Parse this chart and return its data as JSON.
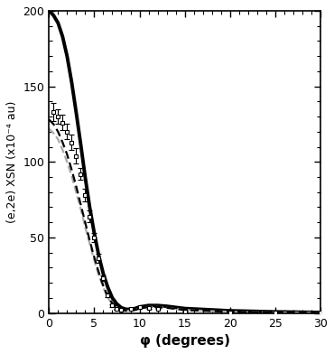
{
  "title": "",
  "xlabel": "φ (degrees)",
  "ylabel": "(e,2e) XSN (x10⁻⁴ au)",
  "xlim": [
    0,
    30
  ],
  "ylim": [
    0,
    200
  ],
  "xticks": [
    0,
    5,
    10,
    15,
    20,
    25,
    30
  ],
  "yticks": [
    0,
    50,
    100,
    150,
    200
  ],
  "background_color": "#ffffff",
  "exp_phi": [
    0.5,
    1.0,
    1.5,
    2.0,
    2.5,
    3.0,
    3.5,
    4.0,
    4.5,
    5.0,
    5.5,
    6.0,
    6.5,
    7.0,
    7.5,
    8.0,
    9.0,
    10.0,
    11.0,
    12.0,
    15.0,
    20.0,
    25.0,
    30.0
  ],
  "exp_val": [
    133,
    130,
    126,
    120,
    113,
    104,
    92,
    78,
    64,
    50,
    36,
    23,
    12,
    5,
    2.5,
    2,
    3,
    4,
    3.5,
    3,
    1,
    0.5,
    0.3,
    0.2
  ],
  "exp_err": [
    6,
    5,
    5,
    5,
    5,
    5,
    4,
    4,
    4,
    3,
    3,
    2,
    1.5,
    1,
    0.5,
    0.5,
    0.5,
    0.5,
    0.5,
    0.3,
    0.3,
    0.2,
    0.2,
    0.2
  ],
  "theory1_phi": [
    0.0,
    0.2,
    0.5,
    1.0,
    1.5,
    2.0,
    2.5,
    3.0,
    3.5,
    4.0,
    4.5,
    5.0,
    5.5,
    6.0,
    6.5,
    7.0,
    7.5,
    8.0,
    8.5,
    9.0,
    9.5,
    10.0,
    11.0,
    12.0,
    13.0,
    15.0,
    20.0,
    25.0,
    30.0
  ],
  "theory1_val": [
    200,
    199,
    197,
    192,
    183,
    170,
    153,
    133,
    112,
    90,
    70,
    53,
    38,
    26,
    17,
    10,
    6,
    3.5,
    2.5,
    2.5,
    3,
    4,
    5,
    5,
    4.5,
    3,
    1.5,
    0.8,
    0.4
  ],
  "theory2_phi": [
    0.0,
    0.5,
    1.0,
    1.5,
    2.0,
    2.5,
    3.0,
    3.5,
    4.0,
    4.5,
    5.0,
    5.5,
    6.0,
    6.5,
    7.0,
    7.5,
    8.0,
    8.5,
    9.0,
    9.5,
    10.0,
    11.0,
    12.0,
    13.0,
    15.0,
    20.0,
    25.0,
    30.0
  ],
  "theory2_val": [
    122,
    119,
    115,
    108,
    100,
    91,
    80,
    69,
    57,
    46,
    35,
    25,
    17,
    10,
    6,
    3.5,
    2,
    1.5,
    1.5,
    2,
    3,
    4,
    4,
    3.5,
    2,
    0.8,
    0.4,
    0.2
  ],
  "theory3_phi": [
    0.0,
    0.5,
    1.0,
    1.5,
    2.0,
    2.5,
    3.0,
    3.5,
    4.0,
    4.5,
    5.0,
    5.5,
    6.0,
    6.5,
    7.0,
    7.5,
    8.0,
    8.5,
    9.0,
    9.5,
    10.0,
    11.0,
    12.0,
    13.0,
    15.0,
    20.0,
    25.0,
    30.0
  ],
  "theory3_val": [
    128,
    125,
    120,
    113,
    105,
    95,
    84,
    72,
    60,
    48,
    37,
    27,
    18,
    11,
    6.5,
    3.8,
    2,
    1.5,
    1.5,
    2,
    3,
    4,
    4,
    3.5,
    2,
    0.8,
    0.4,
    0.2
  ],
  "line_colors": {
    "theory1": "#000000",
    "theory2": "#aaaaaa",
    "theory3": "#000000"
  },
  "line_widths": {
    "theory1": 2.8,
    "theory2": 1.6,
    "theory3": 1.6
  }
}
